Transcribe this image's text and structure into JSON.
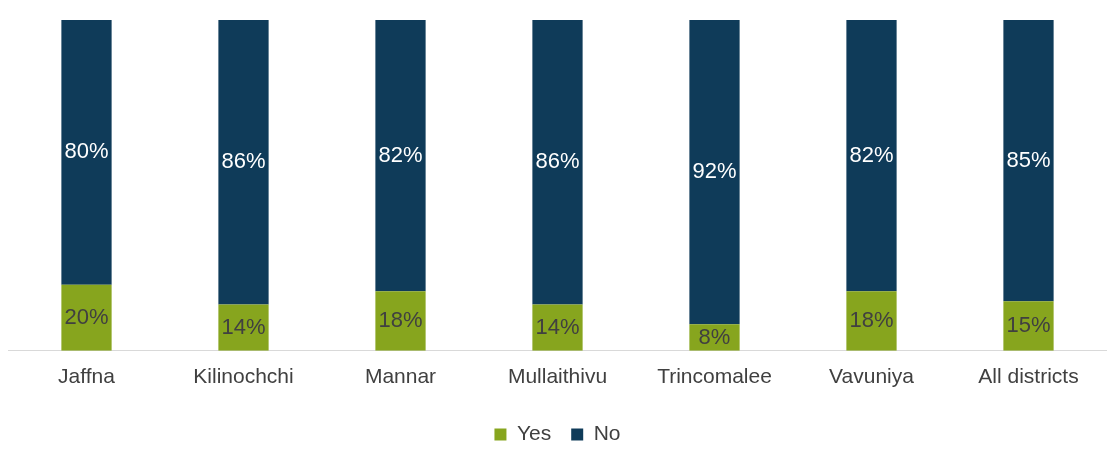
{
  "chart_data": {
    "type": "bar",
    "stacked": true,
    "categories": [
      "Jaffna",
      "Kilinochchi",
      "Mannar",
      "Mullaithivu",
      "Trincomalee",
      "Vavuniya",
      "All districts"
    ],
    "series": [
      {
        "name": "Yes",
        "color": "#87a51e",
        "values": [
          20,
          14,
          18,
          14,
          8,
          18,
          15
        ],
        "value_labels": [
          "20%",
          "14%",
          "18%",
          "14%",
          "8%",
          "18%",
          "15%"
        ]
      },
      {
        "name": "No",
        "color": "#0f3b59",
        "values": [
          80,
          86,
          82,
          86,
          92,
          82,
          85
        ],
        "value_labels": [
          "80%",
          "86%",
          "82%",
          "86%",
          "92%",
          "82%",
          "85%"
        ]
      }
    ],
    "tick_labels": "x",
    "grid": false,
    "legend": "bottom"
  }
}
